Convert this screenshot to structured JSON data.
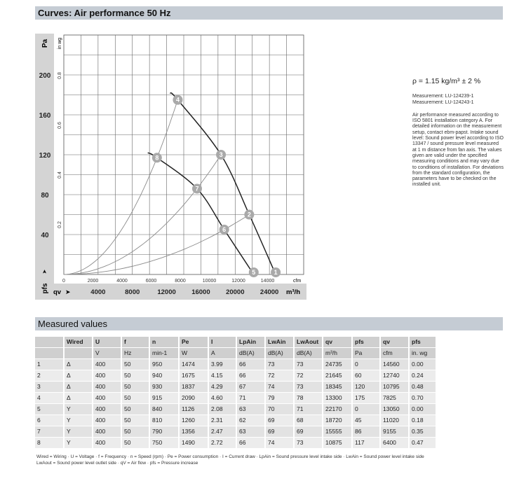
{
  "header": {
    "title": "Curves: Air performance 50 Hz"
  },
  "info": {
    "density": "ρ = 1.15 kg/m³ ± 2 %",
    "measurements": [
      "Measurement: LU-124239-1",
      "Measurement: LU-124243-1"
    ],
    "note": "Air performance measured according to ISO 5801 installation category A. For detailed information on the measurement setup, contact ebm-papst. Intake sound level: Sound power level according to ISO 13347 / sound pressure level measured at 1 m distance from fan axis. The values given are valid under the specified measuring conditions and may vary due to conditions of installation. For deviations from the standard configuration, the parameters have to be checked on the installed unit."
  },
  "chart_data": {
    "type": "line",
    "title": "",
    "ylabel": "Pa",
    "ylabel2": "in wg",
    "ylabel_bottom": "pfs",
    "xlabel": "qv",
    "xunit": "m³/h",
    "xunit2": "cfm",
    "xlim": [
      0,
      28000
    ],
    "ylim": [
      0,
      240
    ],
    "grid": true,
    "yticks": [
      40,
      80,
      120,
      160,
      200
    ],
    "yticks2": [
      0.2,
      0.4,
      0.6,
      0.8
    ],
    "xticks": [
      4000,
      8000,
      12000,
      16000,
      20000,
      24000
    ],
    "xticks2": [
      0,
      2000,
      4000,
      6000,
      8000,
      10000,
      12000,
      14000
    ],
    "fan_curves": [
      {
        "wiring": "Δ",
        "points": [
          [
            12400,
            182
          ],
          [
            13300,
            175
          ],
          [
            18345,
            120
          ],
          [
            21645,
            60
          ],
          [
            24735,
            0
          ]
        ]
      },
      {
        "wiring": "Y",
        "points": [
          [
            9800,
            122
          ],
          [
            10875,
            117
          ],
          [
            15555,
            86
          ],
          [
            18720,
            45
          ],
          [
            22170,
            0
          ]
        ]
      }
    ],
    "system_curves": [
      {
        "through": [
          13300,
          175
        ]
      },
      {
        "through": [
          18345,
          120
        ]
      },
      {
        "through": [
          21645,
          60
        ]
      }
    ],
    "operating_points": [
      {
        "label": "1",
        "q": 24735,
        "p": 0
      },
      {
        "label": "2",
        "q": 21645,
        "p": 60
      },
      {
        "label": "3",
        "q": 18345,
        "p": 120
      },
      {
        "label": "4",
        "q": 13300,
        "p": 175
      },
      {
        "label": "5",
        "q": 22170,
        "p": 0
      },
      {
        "label": "6",
        "q": 18720,
        "p": 45
      },
      {
        "label": "7",
        "q": 15555,
        "p": 86
      },
      {
        "label": "8",
        "q": 10875,
        "p": 117
      }
    ],
    "colors": {
      "fan_curve": "#222222",
      "system_curve": "#8a8a8a",
      "marker": "#a9a9a9",
      "panel": "#d4d4d4"
    }
  },
  "measured": {
    "title": "Measured values",
    "headers": [
      "",
      "Wired",
      "U",
      "f",
      "n",
      "Pe",
      "I",
      "LpAin",
      "LwAin",
      "LwAout",
      "qv",
      "pfs",
      "qv",
      "pfs"
    ],
    "units": [
      "",
      "",
      "V",
      "Hz",
      "min-1",
      "W",
      "A",
      "dB(A)",
      "dB(A)",
      "dB(A)",
      "m³/h",
      "Pa",
      "cfm",
      "in. wg"
    ],
    "rows": [
      [
        "1",
        "Δ",
        "400",
        "50",
        "950",
        "1474",
        "3.99",
        "66",
        "73",
        "73",
        "24735",
        "0",
        "14560",
        "0.00"
      ],
      [
        "2",
        "Δ",
        "400",
        "50",
        "940",
        "1675",
        "4.15",
        "66",
        "72",
        "72",
        "21645",
        "60",
        "12740",
        "0.24"
      ],
      [
        "3",
        "Δ",
        "400",
        "50",
        "930",
        "1837",
        "4.29",
        "67",
        "74",
        "73",
        "18345",
        "120",
        "10795",
        "0.48"
      ],
      [
        "4",
        "Δ",
        "400",
        "50",
        "915",
        "2090",
        "4.60",
        "71",
        "79",
        "78",
        "13300",
        "175",
        "7825",
        "0.70"
      ],
      [
        "5",
        "Y",
        "400",
        "50",
        "840",
        "1126",
        "2.08",
        "63",
        "70",
        "71",
        "22170",
        "0",
        "13050",
        "0.00"
      ],
      [
        "6",
        "Y",
        "400",
        "50",
        "810",
        "1260",
        "2.31",
        "62",
        "69",
        "68",
        "18720",
        "45",
        "11020",
        "0.18"
      ],
      [
        "7",
        "Y",
        "400",
        "50",
        "790",
        "1356",
        "2.47",
        "63",
        "69",
        "69",
        "15555",
        "86",
        "9155",
        "0.35"
      ],
      [
        "8",
        "Y",
        "400",
        "50",
        "750",
        "1490",
        "2.72",
        "66",
        "74",
        "73",
        "10875",
        "117",
        "6400",
        "0.47"
      ]
    ],
    "footnote1": "Wired = Wiring · U = Voltage · f = Frequency · n = Speed (rpm) · Pe = Power consumption · I = Current draw · LpAin = Sound pressure level intake side · LwAin = Sound power level intake side",
    "footnote2": "LwAout = Sound power level outlet side · qV = Air flow · pfs = Pressure increase"
  }
}
